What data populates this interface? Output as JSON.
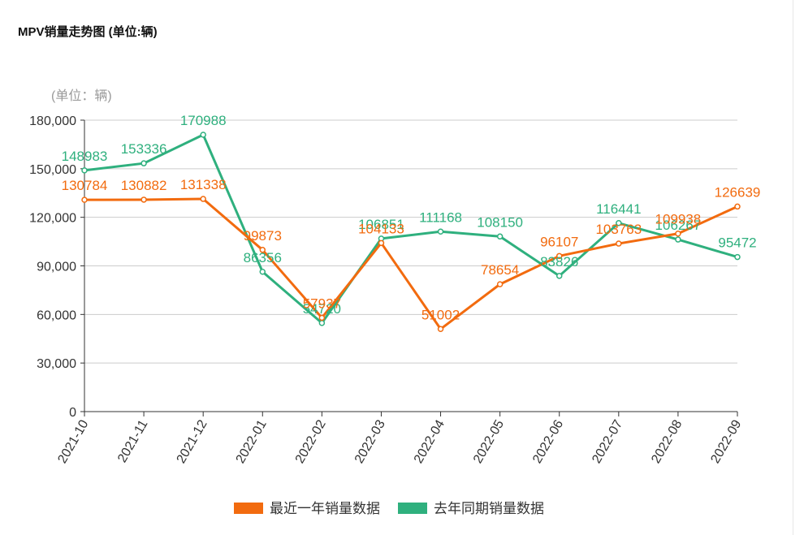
{
  "title": "MPV销量走势图 (单位:辆)",
  "chart_data": {
    "type": "line",
    "title": "MPV销量走势图 (单位:辆)",
    "unit_label": "(单位：辆)",
    "categories": [
      "2021-10",
      "2021-11",
      "2021-12",
      "2022-01",
      "2022-02",
      "2022-03",
      "2022-04",
      "2022-05",
      "2022-06",
      "2022-07",
      "2022-08",
      "2022-09"
    ],
    "y_ticks": [
      0,
      30000,
      60000,
      90000,
      120000,
      150000,
      180000
    ],
    "y_tick_labels": [
      "0",
      "30,000",
      "60,000",
      "90,000",
      "120,000",
      "150,000",
      "180,000"
    ],
    "ylim": [
      0,
      180000
    ],
    "grid": true,
    "legend_position": "bottom-center",
    "series": [
      {
        "name": "最近一年销量数据",
        "color": "#f26b0f",
        "values": [
          130784,
          130882,
          131338,
          99873,
          57937,
          104133,
          51002,
          78654,
          96107,
          103763,
          109938,
          126639
        ]
      },
      {
        "name": "去年同期销量数据",
        "color": "#2fb07e",
        "values": [
          148983,
          153336,
          170988,
          86356,
          54720,
          106851,
          111168,
          108150,
          83826,
          116441,
          106267,
          95472
        ]
      }
    ]
  }
}
